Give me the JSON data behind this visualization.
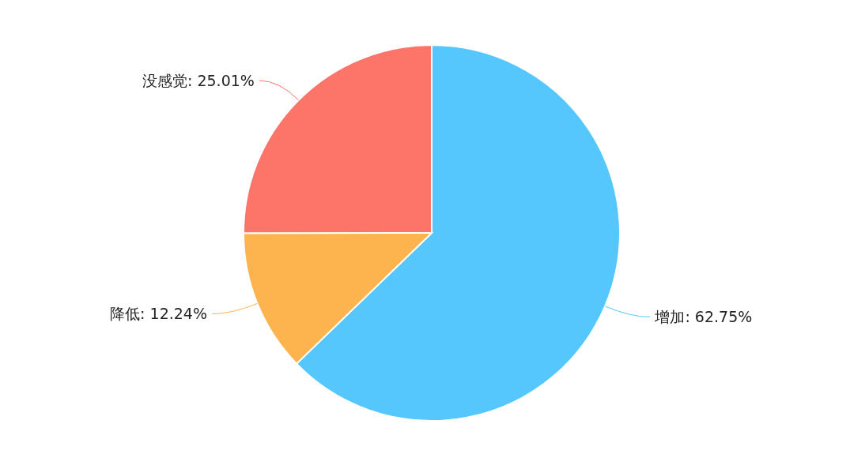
{
  "chart_data": {
    "type": "pie",
    "categories": [
      "增加",
      "降低",
      "没感觉"
    ],
    "values": [
      62.75,
      12.24,
      25.01
    ],
    "colors": [
      "#55c7fc",
      "#fdb44e",
      "#fd7469"
    ],
    "value_labels": [
      "62.75%",
      "12.24%",
      "25.01%"
    ]
  }
}
